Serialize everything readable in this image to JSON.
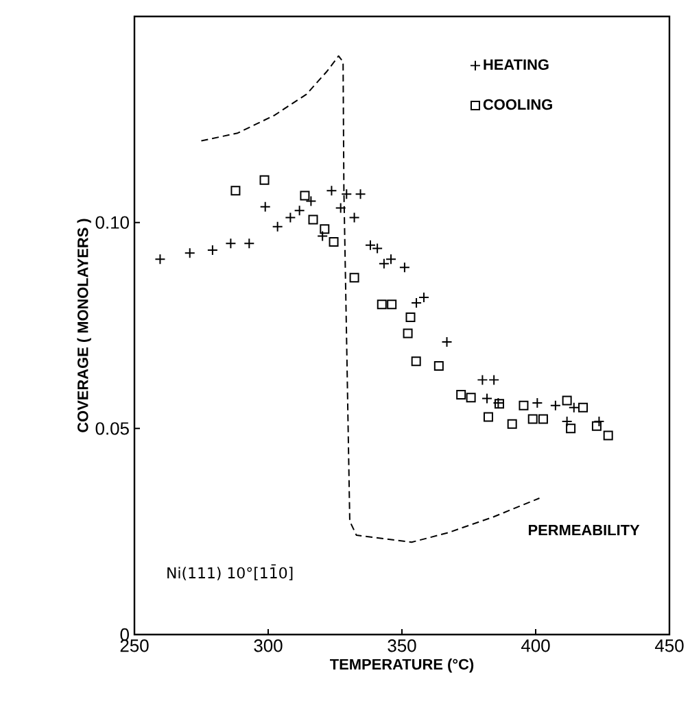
{
  "chart_data": {
    "type": "scatter",
    "xlabel": "TEMPERATURE (°C)",
    "ylabel": "COVERAGE ( MONOLAYERS )",
    "xlim": [
      250,
      450
    ],
    "xticks": [
      250,
      300,
      350,
      400,
      450
    ],
    "ylim": [
      0,
      0.15
    ],
    "yticks": [
      0,
      0.05,
      {
        "value": 0.1,
        "label": "0.10"
      }
    ],
    "legend": "top right",
    "grid": false,
    "annotations": [
      "Ni(111)  10°[11̄0]"
    ],
    "series": [
      {
        "name": "HEATING",
        "color": "#000000",
        "marker": "cross",
        "x": [
          259.6,
          270.7,
          279.2,
          286,
          292.9,
          298.9,
          303.5,
          308.3,
          311.7,
          316,
          320.3,
          323.7,
          327.1,
          329.3,
          332.2,
          334.5,
          338.2,
          340.8,
          343.3,
          345.9,
          351,
          355.4,
          358.2,
          366.8,
          380.1,
          384.4,
          381.8,
          386,
          400.6,
          407.4,
          411.7,
          414.3,
          423.7
        ],
        "values": [
          0.0911,
          0.0926,
          0.0933,
          0.0949,
          0.0949,
          0.1038,
          0.099,
          0.1012,
          0.1029,
          0.1052,
          0.0967,
          0.1077,
          0.1035,
          0.1069,
          0.1012,
          0.1069,
          0.0945,
          0.0937,
          0.09,
          0.0911,
          0.0891,
          0.0805,
          0.0818,
          0.071,
          0.0618,
          0.0618,
          0.0573,
          0.0562,
          0.0562,
          0.0556,
          0.0517,
          0.0551,
          0.0517
        ]
      },
      {
        "name": "COOLING",
        "color": "#000000",
        "marker": "square",
        "x": [
          287.8,
          298.6,
          313.7,
          316.8,
          321.1,
          324.5,
          332.2,
          342.5,
          346.2,
          353.2,
          352.2,
          355.3,
          363.8,
          372.1,
          375.8,
          382.3,
          386.4,
          391.2,
          395.5,
          398.9,
          402.8,
          411.7,
          413.1,
          417.7,
          422.8,
          427.1
        ],
        "values": [
          0.1077,
          0.1103,
          0.1065,
          0.1007,
          0.0984,
          0.0953,
          0.0866,
          0.0801,
          0.0801,
          0.077,
          0.0731,
          0.0663,
          0.0652,
          0.0582,
          0.0575,
          0.0528,
          0.056,
          0.0511,
          0.0556,
          0.0523,
          0.0523,
          0.0568,
          0.05,
          0.0551,
          0.0506,
          0.0483
        ]
      },
      {
        "name": "PERMEABILITY",
        "type": "line",
        "color": "#000000",
        "marker": "none",
        "line_style": "dashed",
        "x": [
          275,
          288.6,
          302.3,
          314.3,
          322,
          326.3,
          328,
          328.3,
          329.3,
          330.5,
          333,
          353.6,
          367.2,
          384.4,
          401.4
        ],
        "values": [
          0.1198,
          0.1217,
          0.126,
          0.1311,
          0.1367,
          0.1404,
          0.139,
          0.108,
          0.072,
          0.0275,
          0.0241,
          0.0224,
          0.0247,
          0.0286,
          0.0331
        ]
      }
    ]
  }
}
